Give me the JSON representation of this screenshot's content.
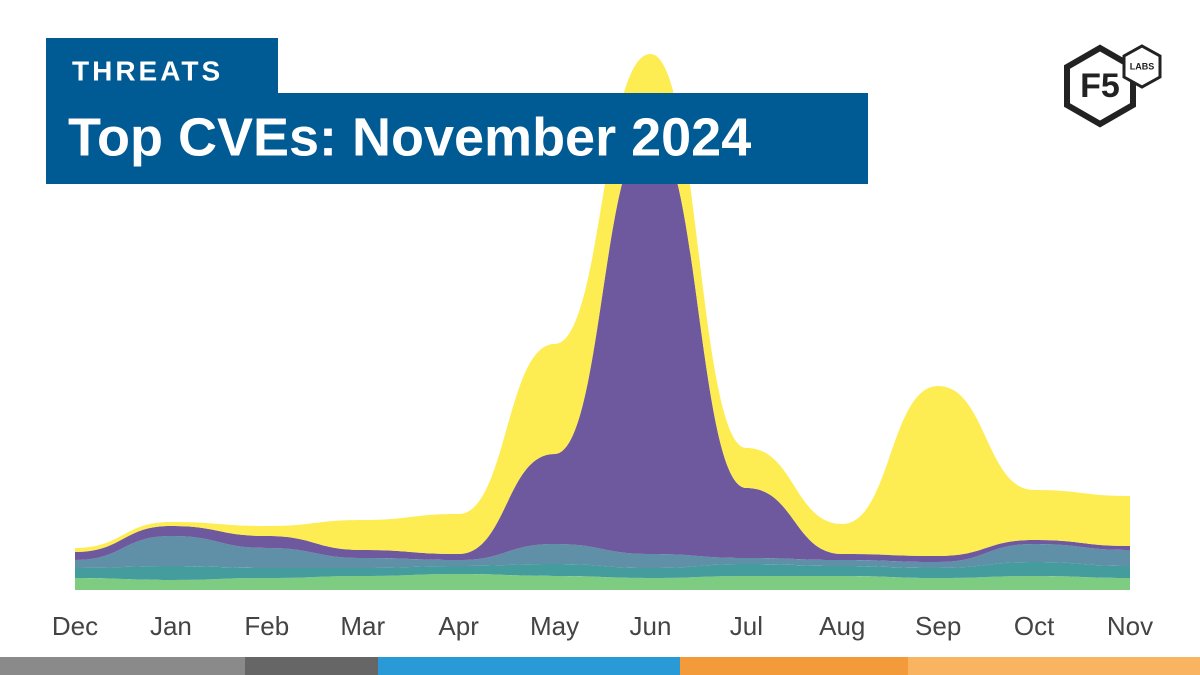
{
  "header": {
    "kicker": "THREATS",
    "title": "Top CVEs: November 2024"
  },
  "logo": {
    "mark": "F5",
    "sub": "LABS"
  },
  "chart_data": {
    "type": "stream",
    "categories": [
      "Dec",
      "Jan",
      "Feb",
      "Mar",
      "Apr",
      "May",
      "Jun",
      "Jul",
      "Aug",
      "Sep",
      "Oct",
      "Nov"
    ],
    "ylim": [
      0,
      540
    ],
    "series": [
      {
        "color": "#6cc56f",
        "values": [
          12,
          10,
          12,
          14,
          16,
          14,
          12,
          14,
          14,
          12,
          14,
          12
        ]
      },
      {
        "color": "#2a8f8e",
        "values": [
          10,
          14,
          10,
          8,
          8,
          12,
          10,
          12,
          10,
          10,
          14,
          12
        ]
      },
      {
        "color": "#4a7f9c",
        "values": [
          8,
          30,
          20,
          10,
          6,
          20,
          14,
          6,
          6,
          6,
          18,
          16
        ]
      },
      {
        "color": "#5b4291",
        "values": [
          8,
          10,
          12,
          8,
          6,
          90,
          420,
          70,
          6,
          6,
          4,
          4
        ]
      },
      {
        "color": "#fde93a",
        "values": [
          4,
          4,
          10,
          30,
          40,
          110,
          80,
          40,
          30,
          170,
          50,
          50
        ]
      }
    ]
  }
}
